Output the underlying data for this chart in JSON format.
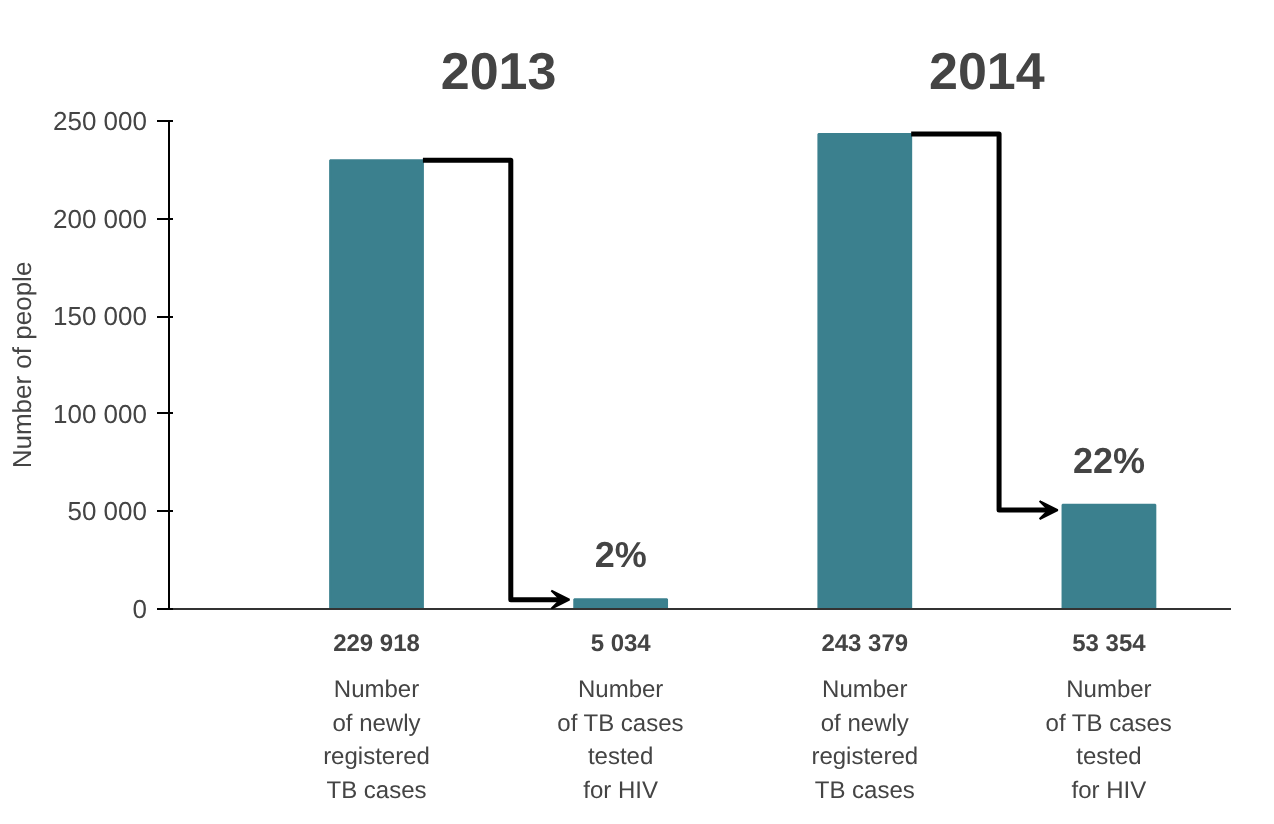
{
  "chart_data": {
    "type": "bar",
    "ylabel": "Number of people",
    "categories": [
      "Number\nof newly\nregistered\nTB cases",
      "Number\nof TB cases\ntested\nfor HIV",
      "Number\nof newly\nregistered\nTB cases",
      "Number\nof TB cases\ntested\nfor HIV"
    ],
    "values": [
      229918,
      5034,
      243379,
      53354
    ],
    "value_labels": [
      "229 918",
      "5 034",
      "243 379",
      "53 354"
    ],
    "color": "#3b808e",
    "ylim": [
      0,
      250000
    ],
    "yticks": [
      {
        "value": 0,
        "label": "0"
      },
      {
        "value": 50000,
        "label": "50 000"
      },
      {
        "value": 100000,
        "label": "100 000"
      },
      {
        "value": 150000,
        "label": "150 000"
      },
      {
        "value": 200000,
        "label": "200 000"
      },
      {
        "value": 250000,
        "label": "250 000"
      }
    ],
    "annotations": [
      "2013",
      "2014",
      "2%",
      "22%"
    ],
    "grid": false
  }
}
